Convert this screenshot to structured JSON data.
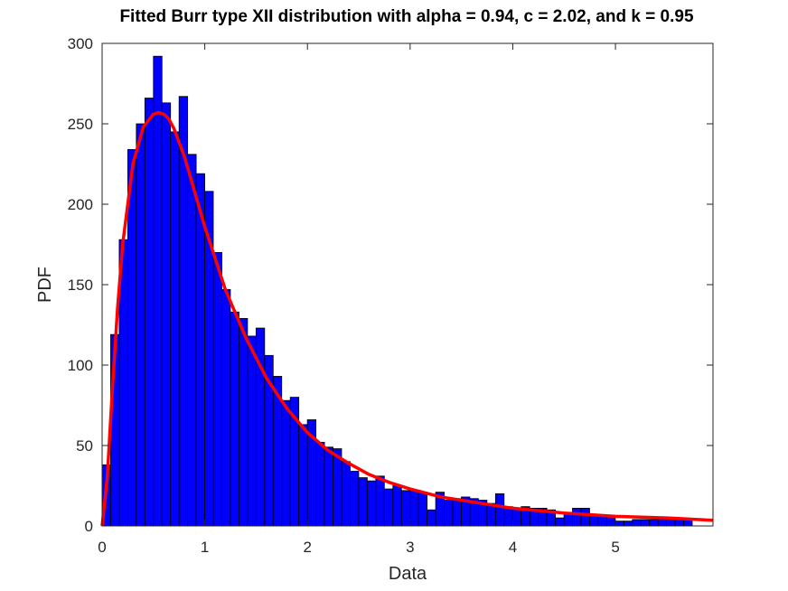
{
  "chart_data": {
    "type": "bar",
    "title": "Fitted Burr type XII distribution with alpha = 0.94, c =  2.02, and k = 0.95",
    "xlabel": "Data",
    "ylabel": "PDF",
    "xlim": [
      0,
      5.95
    ],
    "ylim": [
      0,
      300
    ],
    "xticks": [
      0,
      1,
      2,
      3,
      4,
      5
    ],
    "yticks": [
      0,
      50,
      100,
      150,
      200,
      250,
      300
    ],
    "grid": false,
    "bin_width": 0.0833,
    "bin_start": 0.0,
    "histogram_values": [
      38,
      119,
      178,
      234,
      250,
      266,
      292,
      263,
      245,
      267,
      231,
      219,
      208,
      170,
      147,
      133,
      129,
      118,
      123,
      106,
      93,
      78,
      80,
      63,
      66,
      52,
      49,
      48,
      40,
      34,
      30,
      28,
      31,
      23,
      25,
      22,
      22,
      21,
      10,
      21,
      16,
      17,
      18,
      17,
      16,
      14,
      20,
      12,
      11,
      12,
      11,
      11,
      10,
      5,
      8,
      11,
      11,
      7,
      6,
      6,
      3,
      3,
      4,
      4,
      4,
      5,
      4,
      4,
      4
    ],
    "fit_curve": {
      "distribution": "Burr type XII",
      "alpha": 0.94,
      "c": 2.02,
      "k": 0.95,
      "x": [
        0,
        0.05,
        0.1,
        0.15,
        0.2,
        0.3,
        0.4,
        0.5,
        0.55,
        0.6,
        0.65,
        0.7,
        0.8,
        0.9,
        1.0,
        1.2,
        1.4,
        1.6,
        1.8,
        2.0,
        2.2,
        2.4,
        2.6,
        2.8,
        3.0,
        3.3,
        3.6,
        4.0,
        4.5,
        5.0,
        5.5,
        5.95
      ],
      "y": [
        0,
        30,
        85,
        135,
        175,
        225,
        248,
        256,
        257,
        256,
        253,
        247,
        230,
        208,
        186,
        147,
        117,
        92,
        73,
        58,
        47,
        39,
        32,
        27,
        23,
        18,
        15,
        11,
        8,
        6,
        5,
        3.5
      ]
    },
    "colors": {
      "bars": "#0000ff",
      "bar_edge": "#000000",
      "curve": "#ff0000",
      "axes": "#262626"
    }
  }
}
